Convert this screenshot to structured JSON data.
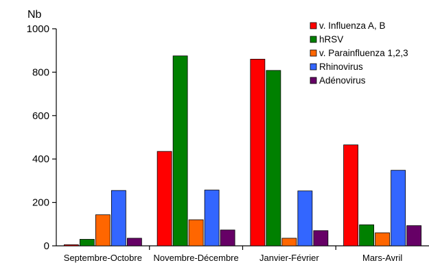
{
  "chart_data": {
    "type": "bar",
    "ylabel": "Nb",
    "xlabel": "",
    "ylim": [
      0,
      1000
    ],
    "yticks": [
      0,
      200,
      400,
      600,
      800,
      1000
    ],
    "grid": false,
    "legend_position": "top-right",
    "categories": [
      "Septembre-Octobre",
      "Novembre-Décembre",
      "Janvier-Février",
      "Mars-Avril"
    ],
    "series": [
      {
        "name": "v. Influenza A, B",
        "color": "#ff0000",
        "values": [
          5,
          435,
          860,
          465
        ]
      },
      {
        "name": "hRSV",
        "color": "#008000",
        "values": [
          30,
          875,
          808,
          97
        ]
      },
      {
        "name": "v. Parainfluenza 1,2,3",
        "color": "#ff6600",
        "values": [
          143,
          120,
          35,
          60
        ]
      },
      {
        "name": "Rhinovirus",
        "color": "#3366ff",
        "values": [
          255,
          257,
          253,
          348
        ]
      },
      {
        "name": "Adénovirus",
        "color": "#660066",
        "values": [
          35,
          73,
          70,
          93
        ]
      }
    ]
  }
}
